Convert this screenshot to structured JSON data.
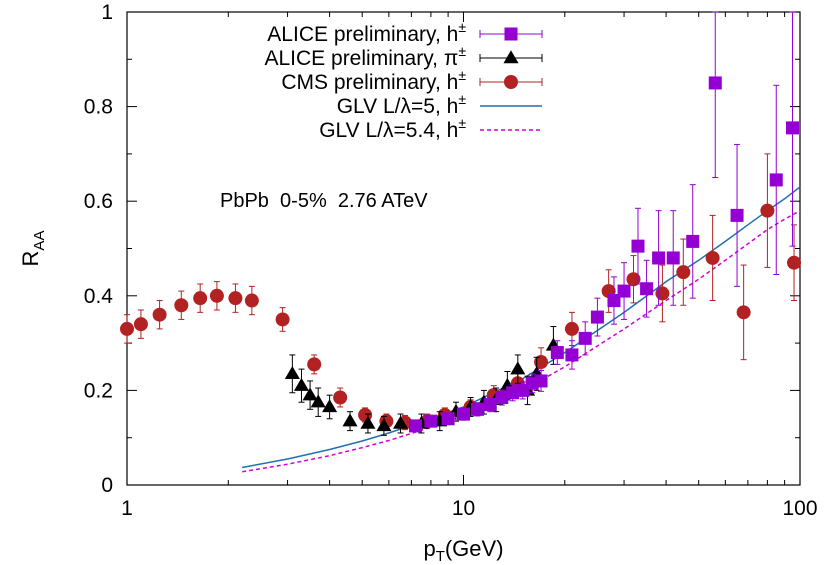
{
  "chart_data": {
    "type": "scatter",
    "xscale": "log",
    "xlim": [
      1,
      100
    ],
    "ylim": [
      0,
      1
    ],
    "xlabel": "p",
    "xlabel_sub": "T",
    "xlabel_unit": "(GeV)",
    "ylabel": "R",
    "ylabel_sub": "AA",
    "xticks": [
      1,
      10,
      100
    ],
    "xtick_labels": [
      "1",
      "10",
      "100"
    ],
    "yticks": [
      0,
      0.2,
      0.4,
      0.6,
      0.8,
      1
    ],
    "ytick_labels": [
      "0",
      "0.2",
      "0.4",
      "0.6",
      "0.8",
      "1"
    ],
    "grid": false,
    "legend_position": "top-right",
    "annotation": "PbPb  0-5%  2.76 ATeV",
    "series": [
      {
        "name": "ALICE preliminary, h",
        "name_sup": "±",
        "marker": "square",
        "color": "#9400d3",
        "points": [
          [
            7.2,
            0.125,
            0.01
          ],
          [
            8.0,
            0.135,
            0.012
          ],
          [
            9.0,
            0.14,
            0.012
          ],
          [
            10.0,
            0.15,
            0.013
          ],
          [
            11.0,
            0.16,
            0.014
          ],
          [
            12.0,
            0.17,
            0.015
          ],
          [
            13.0,
            0.185,
            0.016
          ],
          [
            14.0,
            0.195,
            0.017
          ],
          [
            15.0,
            0.2,
            0.018
          ],
          [
            16.0,
            0.215,
            0.02
          ],
          [
            17.0,
            0.22,
            0.022
          ],
          [
            19.0,
            0.28,
            0.025
          ],
          [
            21.0,
            0.275,
            0.03
          ],
          [
            23.0,
            0.31,
            0.035
          ],
          [
            25.0,
            0.355,
            0.04
          ],
          [
            28.0,
            0.39,
            0.05
          ],
          [
            30.0,
            0.41,
            0.06
          ],
          [
            33.0,
            0.505,
            0.08
          ],
          [
            35.0,
            0.415,
            0.06
          ],
          [
            38.0,
            0.48,
            0.1
          ],
          [
            42.0,
            0.48,
            0.1
          ],
          [
            48.0,
            0.515,
            0.12
          ],
          [
            56.0,
            0.85,
            0.2
          ],
          [
            65.0,
            0.57,
            0.15
          ],
          [
            85.0,
            0.645,
            0.2
          ],
          [
            95.0,
            0.755,
            0.25
          ]
        ]
      },
      {
        "name": "ALICE preliminary, π",
        "name_sup": "±",
        "marker": "triangle",
        "color": "#000000",
        "points": [
          [
            3.1,
            0.235,
            0.04
          ],
          [
            3.3,
            0.21,
            0.035
          ],
          [
            3.5,
            0.19,
            0.03
          ],
          [
            3.7,
            0.175,
            0.03
          ],
          [
            4.0,
            0.165,
            0.025
          ],
          [
            4.6,
            0.135,
            0.02
          ],
          [
            5.2,
            0.13,
            0.02
          ],
          [
            5.8,
            0.125,
            0.02
          ],
          [
            6.5,
            0.13,
            0.02
          ],
          [
            7.5,
            0.13,
            0.02
          ],
          [
            8.5,
            0.135,
            0.02
          ],
          [
            9.5,
            0.155,
            0.02
          ],
          [
            10.5,
            0.165,
            0.02
          ],
          [
            11.5,
            0.175,
            0.025
          ],
          [
            12.5,
            0.18,
            0.025
          ],
          [
            13.5,
            0.21,
            0.03
          ],
          [
            14.5,
            0.245,
            0.03
          ],
          [
            15.5,
            0.2,
            0.03
          ],
          [
            16.5,
            0.235,
            0.035
          ],
          [
            18.5,
            0.295,
            0.04
          ]
        ]
      },
      {
        "name": "CMS preliminary, h",
        "name_sup": "±",
        "marker": "circle",
        "color": "#b22222",
        "points": [
          [
            1.0,
            0.33,
            0.03
          ],
          [
            1.1,
            0.34,
            0.03
          ],
          [
            1.25,
            0.36,
            0.03
          ],
          [
            1.45,
            0.38,
            0.03
          ],
          [
            1.65,
            0.395,
            0.03
          ],
          [
            1.85,
            0.4,
            0.03
          ],
          [
            2.1,
            0.395,
            0.03
          ],
          [
            2.35,
            0.39,
            0.03
          ],
          [
            2.9,
            0.35,
            0.025
          ],
          [
            3.6,
            0.255,
            0.02
          ],
          [
            4.3,
            0.185,
            0.02
          ],
          [
            5.1,
            0.148,
            0.015
          ],
          [
            5.9,
            0.135,
            0.015
          ],
          [
            6.7,
            0.132,
            0.015
          ],
          [
            7.8,
            0.135,
            0.015
          ],
          [
            8.8,
            0.148,
            0.015
          ],
          [
            10.5,
            0.165,
            0.015
          ],
          [
            12.3,
            0.19,
            0.02
          ],
          [
            14.5,
            0.215,
            0.02
          ],
          [
            17.0,
            0.26,
            0.03
          ],
          [
            21.0,
            0.33,
            0.035
          ],
          [
            27.0,
            0.41,
            0.045
          ],
          [
            32.0,
            0.435,
            0.05
          ],
          [
            39.0,
            0.405,
            0.06
          ],
          [
            45.0,
            0.45,
            0.07
          ],
          [
            55.0,
            0.48,
            0.09
          ],
          [
            68.0,
            0.365,
            0.1
          ],
          [
            80.0,
            0.58,
            0.12
          ],
          [
            96.0,
            0.47,
            0.08
          ]
        ]
      },
      {
        "name": "GLV L/λ=5, h",
        "name_sup": "±",
        "marker": "line",
        "color": "#1f6fb2",
        "dash": "",
        "points": [
          [
            2.2,
            0.037
          ],
          [
            3,
            0.055
          ],
          [
            4,
            0.075
          ],
          [
            5,
            0.093
          ],
          [
            6,
            0.11
          ],
          [
            8,
            0.14
          ],
          [
            10,
            0.165
          ],
          [
            15,
            0.225
          ],
          [
            20,
            0.28
          ],
          [
            30,
            0.365
          ],
          [
            40,
            0.43
          ],
          [
            50,
            0.475
          ],
          [
            60,
            0.515
          ],
          [
            70,
            0.55
          ],
          [
            80,
            0.58
          ],
          [
            90,
            0.605
          ],
          [
            100,
            0.63
          ]
        ]
      },
      {
        "name": "GLV L/λ=5.4, h",
        "name_sup": "±",
        "marker": "line",
        "color": "#d400d4",
        "dash": "4,3",
        "points": [
          [
            2.2,
            0.028
          ],
          [
            3,
            0.044
          ],
          [
            4,
            0.062
          ],
          [
            5,
            0.079
          ],
          [
            6,
            0.094
          ],
          [
            8,
            0.122
          ],
          [
            10,
            0.147
          ],
          [
            15,
            0.2
          ],
          [
            20,
            0.25
          ],
          [
            30,
            0.33
          ],
          [
            40,
            0.39
          ],
          [
            50,
            0.435
          ],
          [
            60,
            0.475
          ],
          [
            70,
            0.51
          ],
          [
            80,
            0.54
          ],
          [
            90,
            0.562
          ],
          [
            100,
            0.58
          ]
        ]
      }
    ]
  }
}
